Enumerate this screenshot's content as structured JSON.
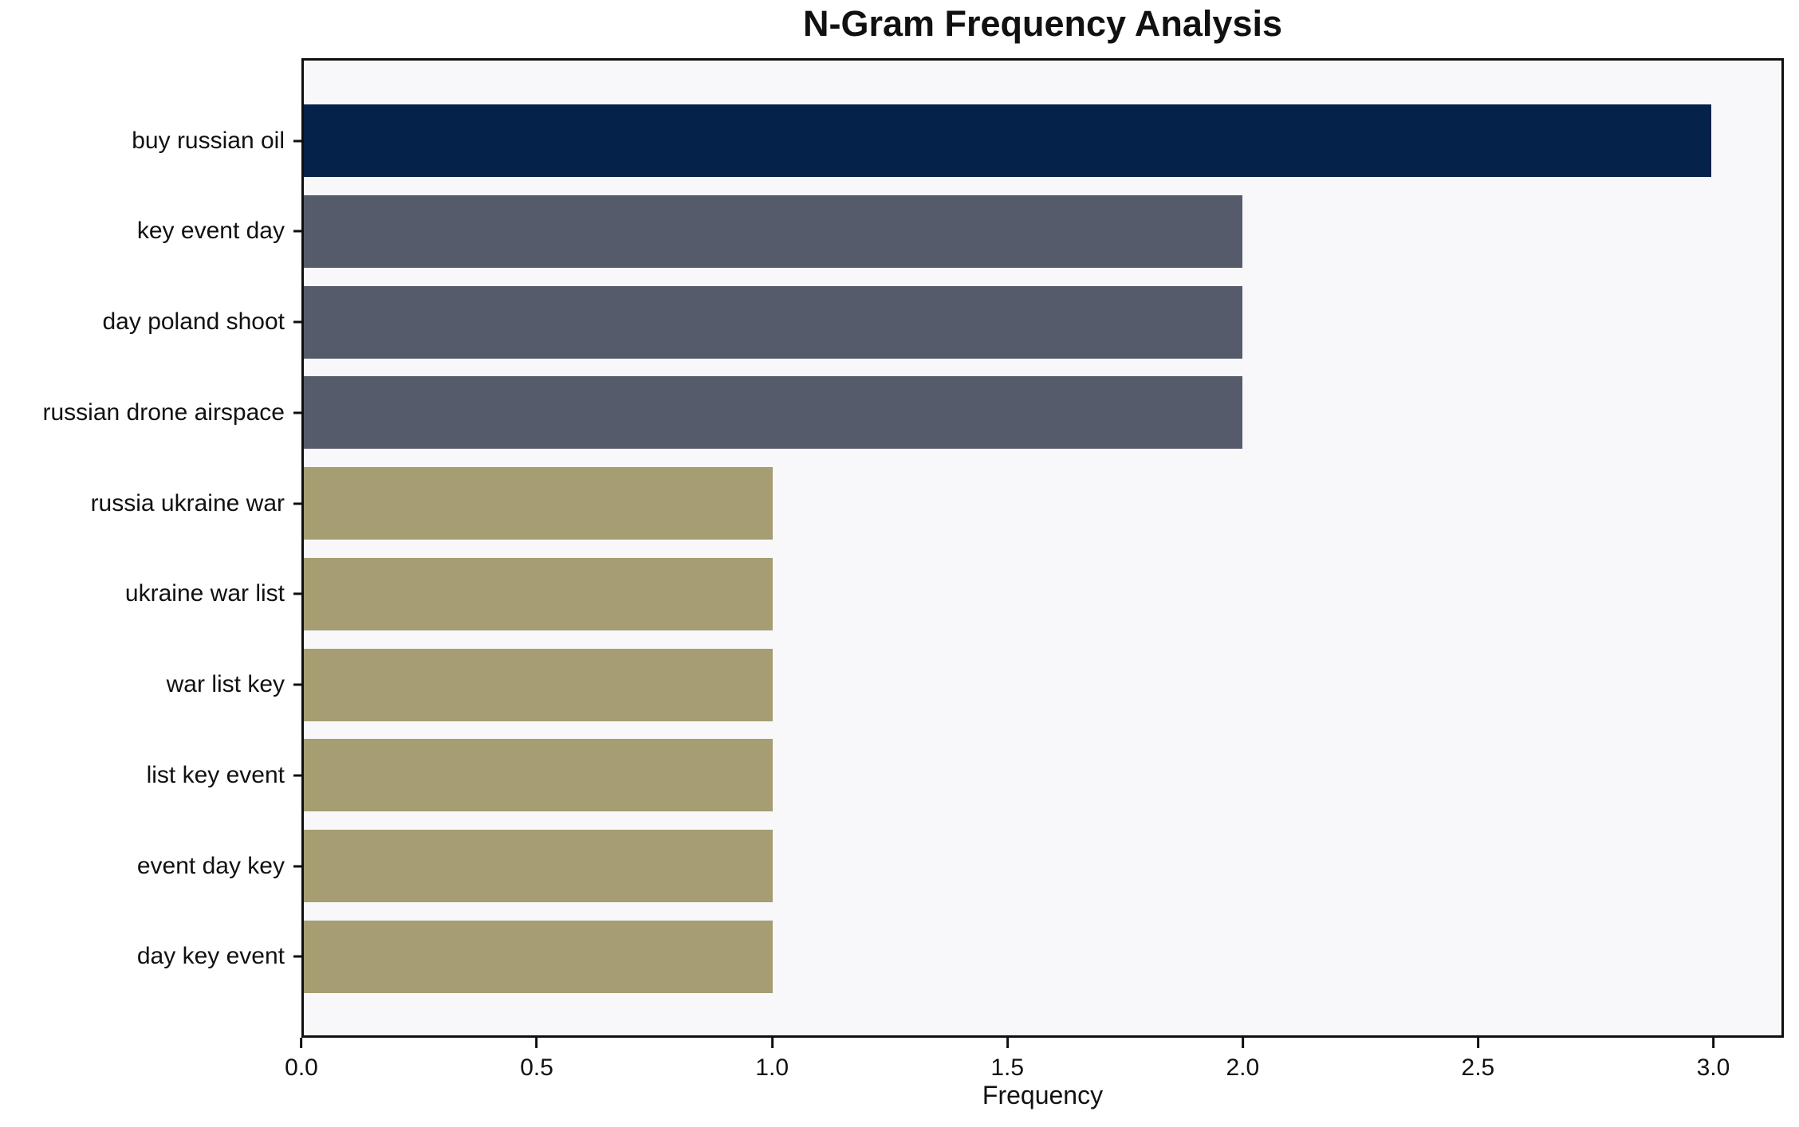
{
  "chart_data": {
    "type": "bar",
    "orientation": "horizontal",
    "title": "N-Gram Frequency Analysis",
    "xlabel": "Frequency",
    "ylabel": "",
    "categories": [
      "buy russian oil",
      "key event day",
      "day poland shoot",
      "russian drone airspace",
      "russia ukraine war",
      "ukraine war list",
      "war list key",
      "list key event",
      "event day key",
      "day key event"
    ],
    "values": [
      3,
      2,
      2,
      2,
      1,
      1,
      1,
      1,
      1,
      1
    ],
    "bar_colors": [
      "#04224a",
      "#565b6b",
      "#565b6b",
      "#565b6b",
      "#a69d72",
      "#a69d72",
      "#a69d72",
      "#a69d72",
      "#a69d72",
      "#a69d72"
    ],
    "xlim": [
      0,
      3.15
    ],
    "xticks": [
      0.0,
      0.5,
      1.0,
      1.5,
      2.0,
      2.5,
      3.0
    ],
    "xtick_labels": [
      "0.0",
      "0.5",
      "1.0",
      "1.5",
      "2.0",
      "2.5",
      "3.0"
    ],
    "grid": false,
    "legend": null,
    "colors": {
      "plot_background": "#f8f8fa",
      "figure_background": "#ffffff",
      "spine": "#0f0f0f",
      "text": "#111111"
    }
  }
}
